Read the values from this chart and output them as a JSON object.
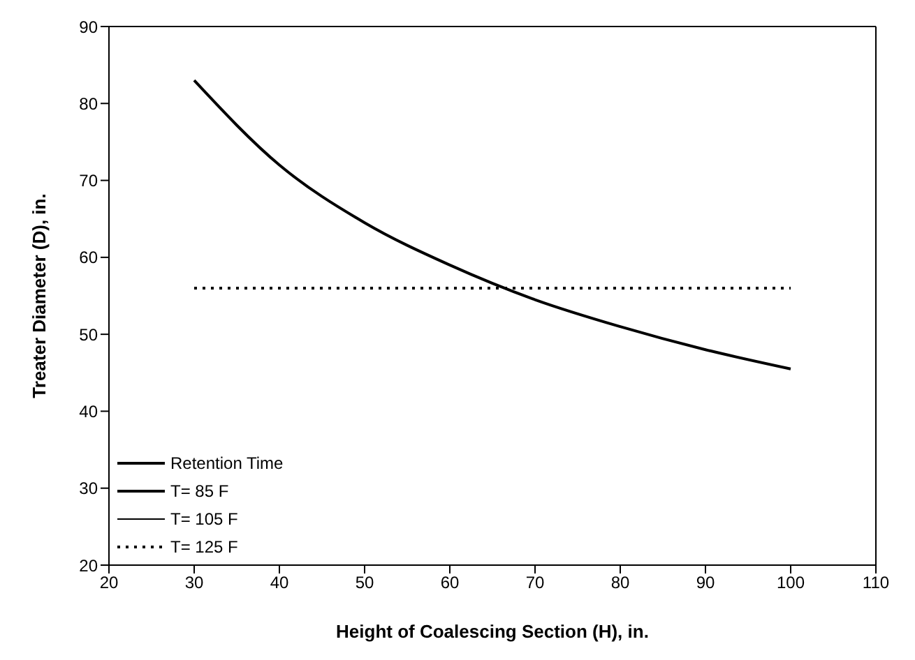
{
  "chart_data": {
    "type": "line",
    "xlabel": "Height of Coalescing Section (H), in.",
    "ylabel": "Treater Diameter (D), in.",
    "x": [
      30,
      40,
      50,
      60,
      70,
      80,
      90,
      100
    ],
    "series": [
      {
        "name": "Retention Time",
        "color": "#000000",
        "line_style": "solid",
        "values": [
          83,
          72,
          64.5,
          59,
          54.5,
          51,
          48,
          45.5
        ]
      },
      {
        "name": "T= 85 F",
        "color": "#000000",
        "line_style": "solid",
        "values": [
          null,
          null,
          null,
          null,
          null,
          null,
          null,
          null
        ]
      },
      {
        "name": "T= 105 F",
        "color": "#000000",
        "line_style": "solid",
        "values": [
          null,
          null,
          null,
          null,
          null,
          null,
          null,
          null
        ]
      },
      {
        "name": "T= 125 F",
        "color": "#000000",
        "line_style": "dotted",
        "values": [
          56,
          56,
          56,
          56,
          56,
          56,
          56,
          56
        ]
      }
    ],
    "xlim": [
      20,
      110
    ],
    "xticks": [
      20,
      30,
      40,
      50,
      60,
      70,
      80,
      90,
      100,
      110
    ],
    "ylim": [
      20,
      90
    ],
    "yticks": [
      20,
      30,
      40,
      50,
      60,
      70,
      80,
      90
    ],
    "grid": false,
    "legend": "bottom left",
    "marker": "none"
  }
}
